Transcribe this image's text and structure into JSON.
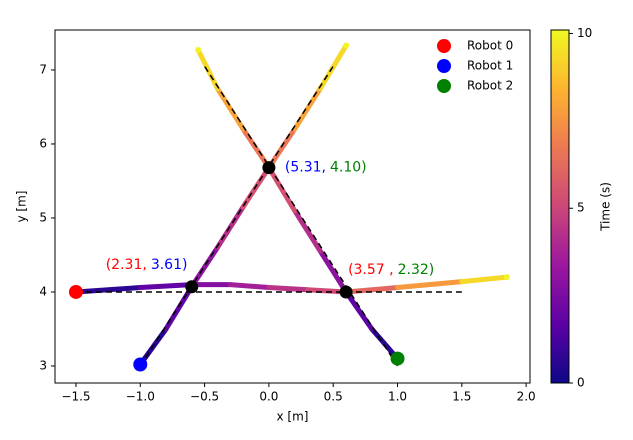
{
  "chart_data": {
    "type": "trajectory",
    "xlabel": "x [m]",
    "ylabel": "y [m]",
    "xlim": [
      -1.663,
      2.03
    ],
    "ylim": [
      2.77,
      7.54
    ],
    "xticks": [
      {
        "value": -1.5,
        "label": "−1.5"
      },
      {
        "value": -1.0,
        "label": "−1.0"
      },
      {
        "value": -0.5,
        "label": "−0.5"
      },
      {
        "value": 0.0,
        "label": "0.0"
      },
      {
        "value": 0.5,
        "label": "0.5"
      },
      {
        "value": 1.0,
        "label": "1.0"
      },
      {
        "value": 1.5,
        "label": "1.5"
      },
      {
        "value": 2.0,
        "label": "2.0"
      }
    ],
    "yticks": [
      3,
      4,
      5,
      6,
      7
    ],
    "legend": "upper right",
    "colormap": [
      "#0d0887",
      "#5c01a6",
      "#9c179e",
      "#cc4778",
      "#ed7953",
      "#fdb42f",
      "#f0f921"
    ],
    "colorbar": {
      "label": "Time (s)",
      "lim": [
        0,
        10.1
      ],
      "ticks": [
        0,
        5,
        10
      ]
    },
    "series": [
      {
        "name": "Robot 0",
        "color": "#ff0000",
        "x": [
          -1.5,
          -1.0,
          -0.6,
          -0.3,
          0.0,
          0.3,
          0.6,
          1.0,
          1.5,
          1.85
        ],
        "y": [
          4.0,
          4.06,
          4.1,
          4.1,
          4.06,
          4.03,
          4.0,
          4.06,
          4.14,
          4.2
        ],
        "time": [
          0,
          1.3,
          2.4,
          3.2,
          4.0,
          4.8,
          5.6,
          6.7,
          8.6,
          10
        ]
      },
      {
        "name": "Robot 1",
        "color": "#0000ff",
        "x": [
          -1.0,
          -0.8,
          -0.6,
          -0.4,
          -0.2,
          0.0,
          0.2,
          0.4,
          0.6
        ],
        "y": [
          3.02,
          3.5,
          4.07,
          4.6,
          5.15,
          5.68,
          6.2,
          6.75,
          7.33
        ],
        "time": [
          0,
          1.2,
          2.4,
          3.6,
          4.8,
          6.0,
          7.3,
          8.6,
          10
        ]
      },
      {
        "name": "Robot 2",
        "color": "#008000",
        "x": [
          1.0,
          0.8,
          0.6,
          0.4,
          0.2,
          0.0,
          -0.2,
          -0.4,
          -0.55
        ],
        "y": [
          3.1,
          3.5,
          4.0,
          4.55,
          5.1,
          5.68,
          6.2,
          6.75,
          7.27
        ],
        "time": [
          0,
          1.2,
          2.4,
          3.6,
          4.8,
          6.0,
          7.3,
          8.6,
          10
        ]
      }
    ],
    "reference_lines": [
      {
        "x": [
          -1.5,
          1.5
        ],
        "y": [
          4.0,
          4.0
        ]
      },
      {
        "x": [
          -1.0,
          0.5
        ],
        "y": [
          3.0,
          7.05
        ]
      },
      {
        "x": [
          1.0,
          -0.5
        ],
        "y": [
          3.0,
          7.05
        ]
      }
    ],
    "intersections": {
      "x": [
        -0.6,
        0.0,
        0.6
      ],
      "y": [
        4.07,
        5.68,
        4.0
      ]
    },
    "annotations": [
      [
        {
          "text": "(2.31,",
          "color": "#ff0000"
        },
        {
          "text": "3.61)",
          "color": "#0000ff"
        }
      ],
      [
        {
          "text": "(5.31,",
          "color": "#0000ff"
        },
        {
          "text": "4.10)",
          "color": "#008000"
        }
      ],
      [
        {
          "text": "(3.57 ,",
          "color": "#ff0000"
        },
        {
          "text": "2.32)",
          "color": "#008000"
        }
      ]
    ]
  }
}
